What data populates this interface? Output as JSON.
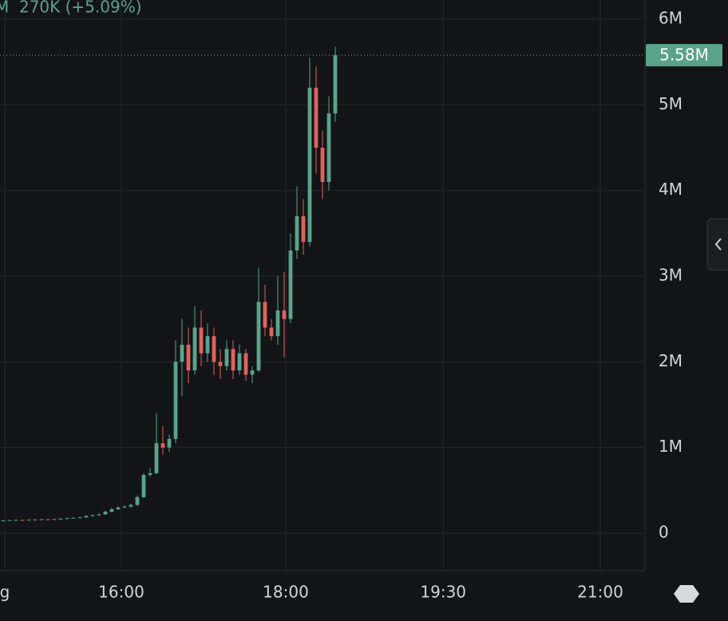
{
  "chart_data": {
    "type": "candlestick",
    "legend_text": "M  270K (+5.09%)",
    "up_color": "#5aa38a",
    "down_color": "#e0625d",
    "grid": true,
    "xlim": [
      -0.5,
      100.5
    ],
    "xticks": [
      {
        "value": 0.25,
        "label": "g"
      },
      {
        "value": 18.5,
        "label": "16:00"
      },
      {
        "value": 44.25,
        "label": "18:00"
      },
      {
        "value": 68.9,
        "label": "19:30"
      },
      {
        "value": 93.5,
        "label": "21:00"
      }
    ],
    "ylim": [
      -438000,
      6224000
    ],
    "yticks": [
      {
        "value": 0,
        "label": "0"
      },
      {
        "value": 1000000,
        "label": "1M"
      },
      {
        "value": 2000000,
        "label": "2M"
      },
      {
        "value": 3000000,
        "label": "3M"
      },
      {
        "value": 4000000,
        "label": "4M"
      },
      {
        "value": 5000000,
        "label": "5M"
      },
      {
        "value": 6000000,
        "label": "6M"
      }
    ],
    "last_price": 5580000,
    "last_price_label": "5.58M",
    "open": [
      148000,
      150000,
      152000,
      155000,
      153000,
      158000,
      160000,
      162000,
      160000,
      165000,
      170000,
      175000,
      180000,
      185000,
      200000,
      210000,
      220000,
      250000,
      280000,
      300000,
      310000,
      330000,
      420000,
      680000,
      700000,
      1050000,
      1000000,
      1100000,
      2000000,
      2200000,
      1900000,
      2400000,
      2100000,
      2300000,
      2000000,
      1950000,
      2150000,
      1900000,
      2100000,
      1850000,
      1900000,
      2700000,
      2400000,
      2300000,
      2600000,
      2500000,
      3300000,
      3700000,
      3400000,
      5200000,
      4500000,
      4100000,
      4900000
    ],
    "high": [
      153000,
      154000,
      157000,
      157000,
      160000,
      163000,
      165000,
      164000,
      168000,
      174000,
      180000,
      185000,
      192000,
      210000,
      218000,
      230000,
      262000,
      295000,
      315000,
      325000,
      345000,
      440000,
      700000,
      760000,
      1400000,
      1250000,
      1150000,
      2250000,
      2500000,
      2400000,
      2650000,
      2600000,
      2450000,
      2400000,
      2150000,
      2250000,
      2250000,
      2200000,
      2150000,
      1950000,
      3100000,
      2900000,
      2500000,
      3000000,
      3050000,
      3500000,
      4050000,
      3900000,
      5550000,
      5450000,
      4700000,
      5100000,
      5680000
    ],
    "low": [
      146000,
      148000,
      150000,
      150000,
      151000,
      156000,
      158000,
      157000,
      158000,
      163000,
      168000,
      172000,
      176000,
      182000,
      196000,
      205000,
      215000,
      245000,
      270000,
      290000,
      300000,
      320000,
      410000,
      660000,
      690000,
      920000,
      950000,
      1050000,
      1600000,
      1750000,
      1850000,
      1950000,
      2000000,
      1850000,
      1800000,
      1900000,
      1800000,
      1850000,
      1780000,
      1750000,
      1880000,
      2300000,
      2250000,
      2200000,
      2050000,
      2450000,
      3200000,
      3250000,
      3350000,
      4200000,
      3900000,
      4000000,
      4800000
    ],
    "close": [
      150000,
      152000,
      155000,
      153000,
      158000,
      160000,
      162000,
      160000,
      165000,
      170000,
      175000,
      180000,
      185000,
      200000,
      210000,
      220000,
      250000,
      280000,
      300000,
      310000,
      330000,
      420000,
      680000,
      700000,
      1050000,
      1000000,
      1100000,
      2000000,
      2200000,
      1900000,
      2400000,
      2100000,
      2300000,
      2000000,
      1950000,
      2150000,
      1900000,
      2100000,
      1850000,
      1900000,
      2700000,
      2400000,
      2300000,
      2600000,
      2500000,
      3300000,
      3700000,
      3400000,
      5200000,
      4500000,
      4100000,
      4900000,
      5580000
    ]
  }
}
